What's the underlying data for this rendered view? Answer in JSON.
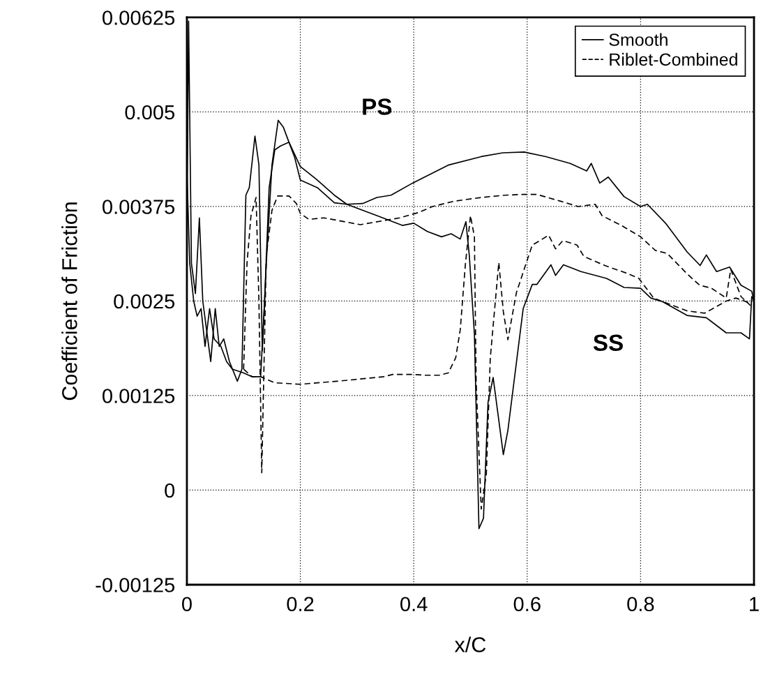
{
  "chart_data": {
    "type": "line",
    "xlabel": "x/C",
    "ylabel": "Coefficient of Friction",
    "xlim": [
      0,
      1
    ],
    "ylim": [
      -0.00125,
      0.00625
    ],
    "xticks": [
      0,
      0.2,
      0.4,
      0.6,
      0.8,
      1
    ],
    "yticks": [
      -0.00125,
      0,
      0.00125,
      0.0025,
      0.00375,
      0.005,
      0.00625
    ],
    "grid": true,
    "legend": "top right",
    "marker": "none",
    "annotations": [
      "PS",
      "SS"
    ],
    "series": [
      {
        "name": "Smooth",
        "color": "#000000",
        "line_style": "solid",
        "x": [
          0.0,
          0.003,
          0.008,
          0.015,
          0.022,
          0.028,
          0.035,
          0.042,
          0.05,
          0.057,
          0.065,
          0.075,
          0.089,
          0.097,
          0.104,
          0.11,
          0.12,
          0.127,
          0.133,
          0.14,
          0.15,
          0.161,
          0.17,
          0.18,
          0.2,
          0.23,
          0.26,
          0.282,
          0.31,
          0.335,
          0.36,
          0.398,
          0.462,
          0.519,
          0.557,
          0.595,
          0.633,
          0.676,
          0.705,
          0.713,
          0.728,
          0.743,
          0.771,
          0.8,
          0.812,
          0.844,
          0.882,
          0.905,
          0.916,
          0.934,
          0.957,
          0.977,
          0.996,
          1.0
        ],
        "values": [
          0.0035,
          0.0062,
          0.003,
          0.0026,
          0.0036,
          0.0025,
          0.0021,
          0.0017,
          0.0024,
          0.0019,
          0.002,
          0.0017,
          0.00144,
          0.0016,
          0.0039,
          0.004,
          0.00468,
          0.0043,
          0.00184,
          0.003,
          0.0043,
          0.00489,
          0.0048,
          0.0046,
          0.00428,
          0.0041,
          0.0039,
          0.00378,
          0.00379,
          0.00387,
          0.0039,
          0.00406,
          0.0043,
          0.00441,
          0.00446,
          0.00447,
          0.00441,
          0.00432,
          0.00422,
          0.00432,
          0.00406,
          0.00414,
          0.00388,
          0.00375,
          0.00378,
          0.00353,
          0.00315,
          0.00297,
          0.00311,
          0.00289,
          0.00295,
          0.00271,
          0.00263,
          0.0025
        ]
      },
      {
        "color": "#000000",
        "line_style": "solid",
        "x": [
          0.0,
          0.005,
          0.012,
          0.018,
          0.025,
          0.032,
          0.04,
          0.048,
          0.06,
          0.07,
          0.08,
          0.1,
          0.115,
          0.13,
          0.137,
          0.145,
          0.155,
          0.165,
          0.18,
          0.19,
          0.2,
          0.23,
          0.26,
          0.282,
          0.335,
          0.38,
          0.4,
          0.424,
          0.449,
          0.466,
          0.482,
          0.492,
          0.498,
          0.507,
          0.515,
          0.523,
          0.531,
          0.54,
          0.558,
          0.566,
          0.593,
          0.609,
          0.617,
          0.642,
          0.65,
          0.664,
          0.695,
          0.74,
          0.771,
          0.8,
          0.818,
          0.839,
          0.882,
          0.916,
          0.951,
          0.977,
          0.992,
          0.996,
          1.0
        ],
        "values": [
          0.0042,
          0.003,
          0.0025,
          0.0023,
          0.0024,
          0.0019,
          0.0024,
          0.002,
          0.0019,
          0.0017,
          0.0016,
          0.00155,
          0.0015,
          0.0015,
          0.0025,
          0.004,
          0.0045,
          0.00455,
          0.0046,
          0.0044,
          0.0041,
          0.004,
          0.0038,
          0.00378,
          0.00363,
          0.0035,
          0.00353,
          0.00342,
          0.00335,
          0.00339,
          0.00332,
          0.00355,
          0.0031,
          0.00206,
          -0.00051,
          -0.00037,
          0.00116,
          0.00149,
          0.00047,
          0.00079,
          0.0024,
          0.00272,
          0.00272,
          0.00298,
          0.00284,
          0.00298,
          0.00289,
          0.0028,
          0.00268,
          0.00267,
          0.00254,
          0.00249,
          0.00231,
          0.00228,
          0.00208,
          0.00208,
          0.002,
          0.00256,
          0.0025
        ]
      },
      {
        "name": "Riblet-Combined",
        "color": "#000000",
        "line_style": "dashed",
        "x": [
          0.1,
          0.106,
          0.113,
          0.122,
          0.127,
          0.132,
          0.14,
          0.15,
          0.16,
          0.18,
          0.193,
          0.2,
          0.215,
          0.242,
          0.306,
          0.375,
          0.408,
          0.433,
          0.471,
          0.519,
          0.561,
          0.592,
          0.617,
          0.659,
          0.69,
          0.72,
          0.732,
          0.766,
          0.8,
          0.826,
          0.847,
          0.882,
          0.904,
          0.925,
          0.951,
          0.959,
          0.977,
          0.994
        ],
        "values": [
          0.0016,
          0.003,
          0.00363,
          0.00387,
          0.0025,
          0.00023,
          0.0031,
          0.0037,
          0.00389,
          0.00389,
          0.00379,
          0.00366,
          0.00358,
          0.0036,
          0.00351,
          0.0036,
          0.00367,
          0.00375,
          0.00382,
          0.00387,
          0.0039,
          0.00391,
          0.00391,
          0.00382,
          0.00375,
          0.00378,
          0.00363,
          0.0035,
          0.00335,
          0.00317,
          0.00313,
          0.00286,
          0.00271,
          0.00267,
          0.00254,
          0.00292,
          0.00256,
          0.00244
        ]
      },
      {
        "color": "#000000",
        "line_style": "dashed",
        "x": [
          0.1,
          0.115,
          0.13,
          0.155,
          0.2,
          0.248,
          0.265,
          0.347,
          0.363,
          0.4,
          0.42,
          0.445,
          0.461,
          0.474,
          0.482,
          0.491,
          0.5,
          0.507,
          0.51,
          0.519,
          0.528,
          0.535,
          0.55,
          0.558,
          0.566,
          0.581,
          0.6,
          0.609,
          0.638,
          0.65,
          0.663,
          0.688,
          0.7,
          0.737,
          0.775,
          0.797,
          0.823,
          0.847,
          0.882,
          0.913,
          0.951,
          0.968,
          0.994
        ],
        "values": [
          0.0016,
          0.0015,
          0.0015,
          0.00142,
          0.0014,
          0.00143,
          0.00144,
          0.0015,
          0.00153,
          0.00153,
          0.00152,
          0.00152,
          0.00155,
          0.00175,
          0.00212,
          0.00298,
          0.00363,
          0.00335,
          0.00144,
          -0.00025,
          0.00021,
          0.00175,
          0.00301,
          0.00236,
          0.00199,
          0.00261,
          0.00304,
          0.00324,
          0.00337,
          0.00319,
          0.0033,
          0.00324,
          0.00309,
          0.00297,
          0.00287,
          0.0028,
          0.00254,
          0.00247,
          0.00237,
          0.00234,
          0.0025,
          0.00254,
          0.00247
        ]
      }
    ]
  }
}
